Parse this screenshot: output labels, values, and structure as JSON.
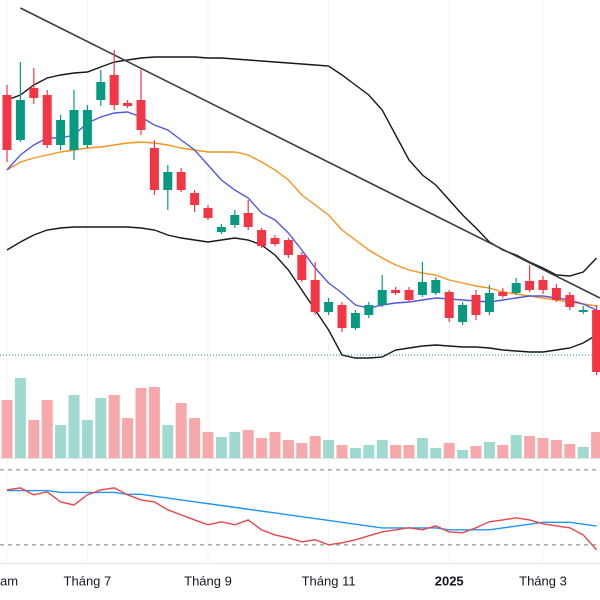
{
  "chart_data": {
    "type": "candlestick",
    "categories": [
      "am",
      null,
      null,
      null,
      null,
      null,
      "Tháng 7",
      null,
      null,
      null,
      null,
      null,
      null,
      null,
      null,
      "Tháng 9",
      null,
      null,
      null,
      null,
      null,
      null,
      null,
      null,
      "Tháng 11",
      null,
      null,
      null,
      null,
      null,
      null,
      null,
      null,
      "2025",
      null,
      null,
      null,
      null,
      null,
      null,
      "Tháng 3",
      null,
      null,
      null,
      null
    ],
    "candles": {
      "open": [
        285,
        240,
        292,
        285,
        235,
        230,
        235,
        280,
        305,
        277,
        280,
        232,
        190,
        208,
        187,
        172,
        148,
        155,
        167,
        150,
        142,
        140,
        125,
        100,
        68,
        75,
        52,
        65,
        75,
        90,
        90,
        85,
        87,
        88,
        58,
        85,
        68,
        88,
        87,
        99,
        100,
        92,
        85,
        68,
        70
      ],
      "high": [
        295,
        318,
        312,
        290,
        265,
        290,
        275,
        310,
        330,
        280,
        310,
        240,
        215,
        212,
        190,
        175,
        156,
        170,
        180,
        152,
        145,
        142,
        128,
        118,
        82,
        78,
        70,
        78,
        105,
        93,
        93,
        118,
        103,
        90,
        78,
        90,
        95,
        92,
        102,
        115,
        104,
        96,
        88,
        74,
        75
      ],
      "low": [
        218,
        238,
        276,
        232,
        230,
        220,
        232,
        274,
        270,
        272,
        245,
        185,
        170,
        188,
        168,
        160,
        146,
        152,
        150,
        132,
        134,
        122,
        98,
        65,
        65,
        48,
        50,
        62,
        73,
        85,
        78,
        83,
        85,
        58,
        55,
        60,
        65,
        82,
        85,
        88,
        86,
        78,
        70,
        66,
        5
      ],
      "close": [
        230,
        280,
        282,
        235,
        260,
        270,
        270,
        298,
        275,
        274,
        250,
        190,
        208,
        190,
        175,
        162,
        153,
        165,
        153,
        134,
        136,
        125,
        100,
        68,
        78,
        52,
        67,
        75,
        90,
        87,
        80,
        98,
        100,
        62,
        75,
        65,
        87,
        84,
        97,
        90,
        90,
        80,
        73,
        70,
        8
      ]
    },
    "up_color": "#089981",
    "down_color": "#f23645",
    "ylim": [
      0,
      380
    ],
    "lines": [
      {
        "color": "#131722",
        "values": [
          280,
          285,
          295,
          302,
          305,
          307,
          308,
          313,
          318,
          320,
          322,
          323,
          323,
          323,
          323,
          322,
          322,
          321,
          320,
          319,
          318,
          317,
          316,
          315,
          314,
          305,
          295,
          285,
          270,
          245,
          220,
          205,
          195,
          180,
          165,
          152,
          138,
          130,
          125,
          118,
          112,
          105,
          104,
          108,
          122
        ]
      },
      {
        "color": "#131722",
        "values": [
          130,
          138,
          145,
          150,
          152,
          153,
          153,
          153,
          153,
          153,
          152,
          150,
          145,
          142,
          140,
          138,
          140,
          142,
          140,
          135,
          125,
          110,
          90,
          70,
          50,
          25,
          22,
          22,
          23,
          30,
          32,
          34,
          35,
          34,
          33,
          33,
          32,
          30,
          29,
          28,
          28,
          30,
          32,
          37,
          45
        ]
      },
      {
        "color": "#f7931e",
        "values": [
          210,
          218,
          222,
          225,
          228,
          230,
          232,
          233,
          235,
          237,
          238,
          237,
          235,
          232,
          230,
          228,
          228,
          228,
          225,
          218,
          210,
          200,
          185,
          175,
          165,
          150,
          140,
          130,
          122,
          115,
          110,
          107,
          105,
          100,
          97,
          94,
          92,
          88,
          86,
          84,
          82,
          80,
          78,
          76,
          74
        ]
      },
      {
        "color": "#5158e0",
        "values": [
          210,
          225,
          235,
          242,
          242,
          245,
          257,
          263,
          267,
          268,
          263,
          255,
          250,
          240,
          230,
          215,
          200,
          190,
          182,
          167,
          160,
          147,
          130,
          112,
          97,
          87,
          75,
          72,
          75,
          77,
          78,
          80,
          82,
          81,
          80,
          79,
          78,
          80,
          82,
          84,
          84,
          82,
          80,
          76,
          70
        ]
      }
    ],
    "trendline": {
      "x": [
        1,
        44.25
      ],
      "y": [
        372,
        82
      ],
      "color": "#3a3d45"
    },
    "price_line": 25,
    "volume": {
      "values": [
        58,
        80,
        38,
        58,
        33,
        63,
        38,
        60,
        63,
        40,
        70,
        71,
        33,
        55,
        40,
        26,
        21,
        26,
        28,
        20,
        26,
        18,
        15,
        22,
        18,
        13,
        10,
        13,
        18,
        13,
        13,
        20,
        10,
        15,
        8,
        12,
        16,
        13,
        23,
        22,
        20,
        18,
        14,
        11,
        26
      ],
      "ylim": [
        0,
        100
      ],
      "up_color": "#9fd9d0",
      "down_color": "#f7a8aa"
    },
    "oscillator": {
      "ylim": [
        0,
        100
      ],
      "levels": [
        70,
        30
      ],
      "lines": [
        {
          "color": "#2196f3",
          "values": [
            59,
            59,
            59,
            59,
            58,
            58,
            58,
            58,
            58,
            57,
            57,
            56,
            55,
            54,
            53,
            52,
            51,
            50,
            49,
            48,
            47,
            46,
            45,
            44,
            43,
            42,
            41,
            40,
            39,
            39,
            39,
            39,
            39,
            38,
            38,
            38,
            38,
            39,
            40,
            41,
            42,
            42,
            42,
            41,
            40
          ]
        },
        {
          "color": "#e5484d",
          "values": [
            59.3,
            60.4,
            56.7,
            58.3,
            52.9,
            51.3,
            56.7,
            59.3,
            60.4,
            56.7,
            54,
            52.9,
            48.7,
            46,
            43.3,
            40.7,
            42.3,
            40.7,
            43.3,
            38,
            35.3,
            33.7,
            31.6,
            32.7,
            30,
            31.1,
            32.7,
            34.8,
            36.9,
            38,
            39.1,
            38,
            40.1,
            36.9,
            36.4,
            39.1,
            42.3,
            43.3,
            44.4,
            43.3,
            41.2,
            40.1,
            39.1,
            35.3,
            27.3
          ]
        }
      ]
    },
    "grid": true
  }
}
